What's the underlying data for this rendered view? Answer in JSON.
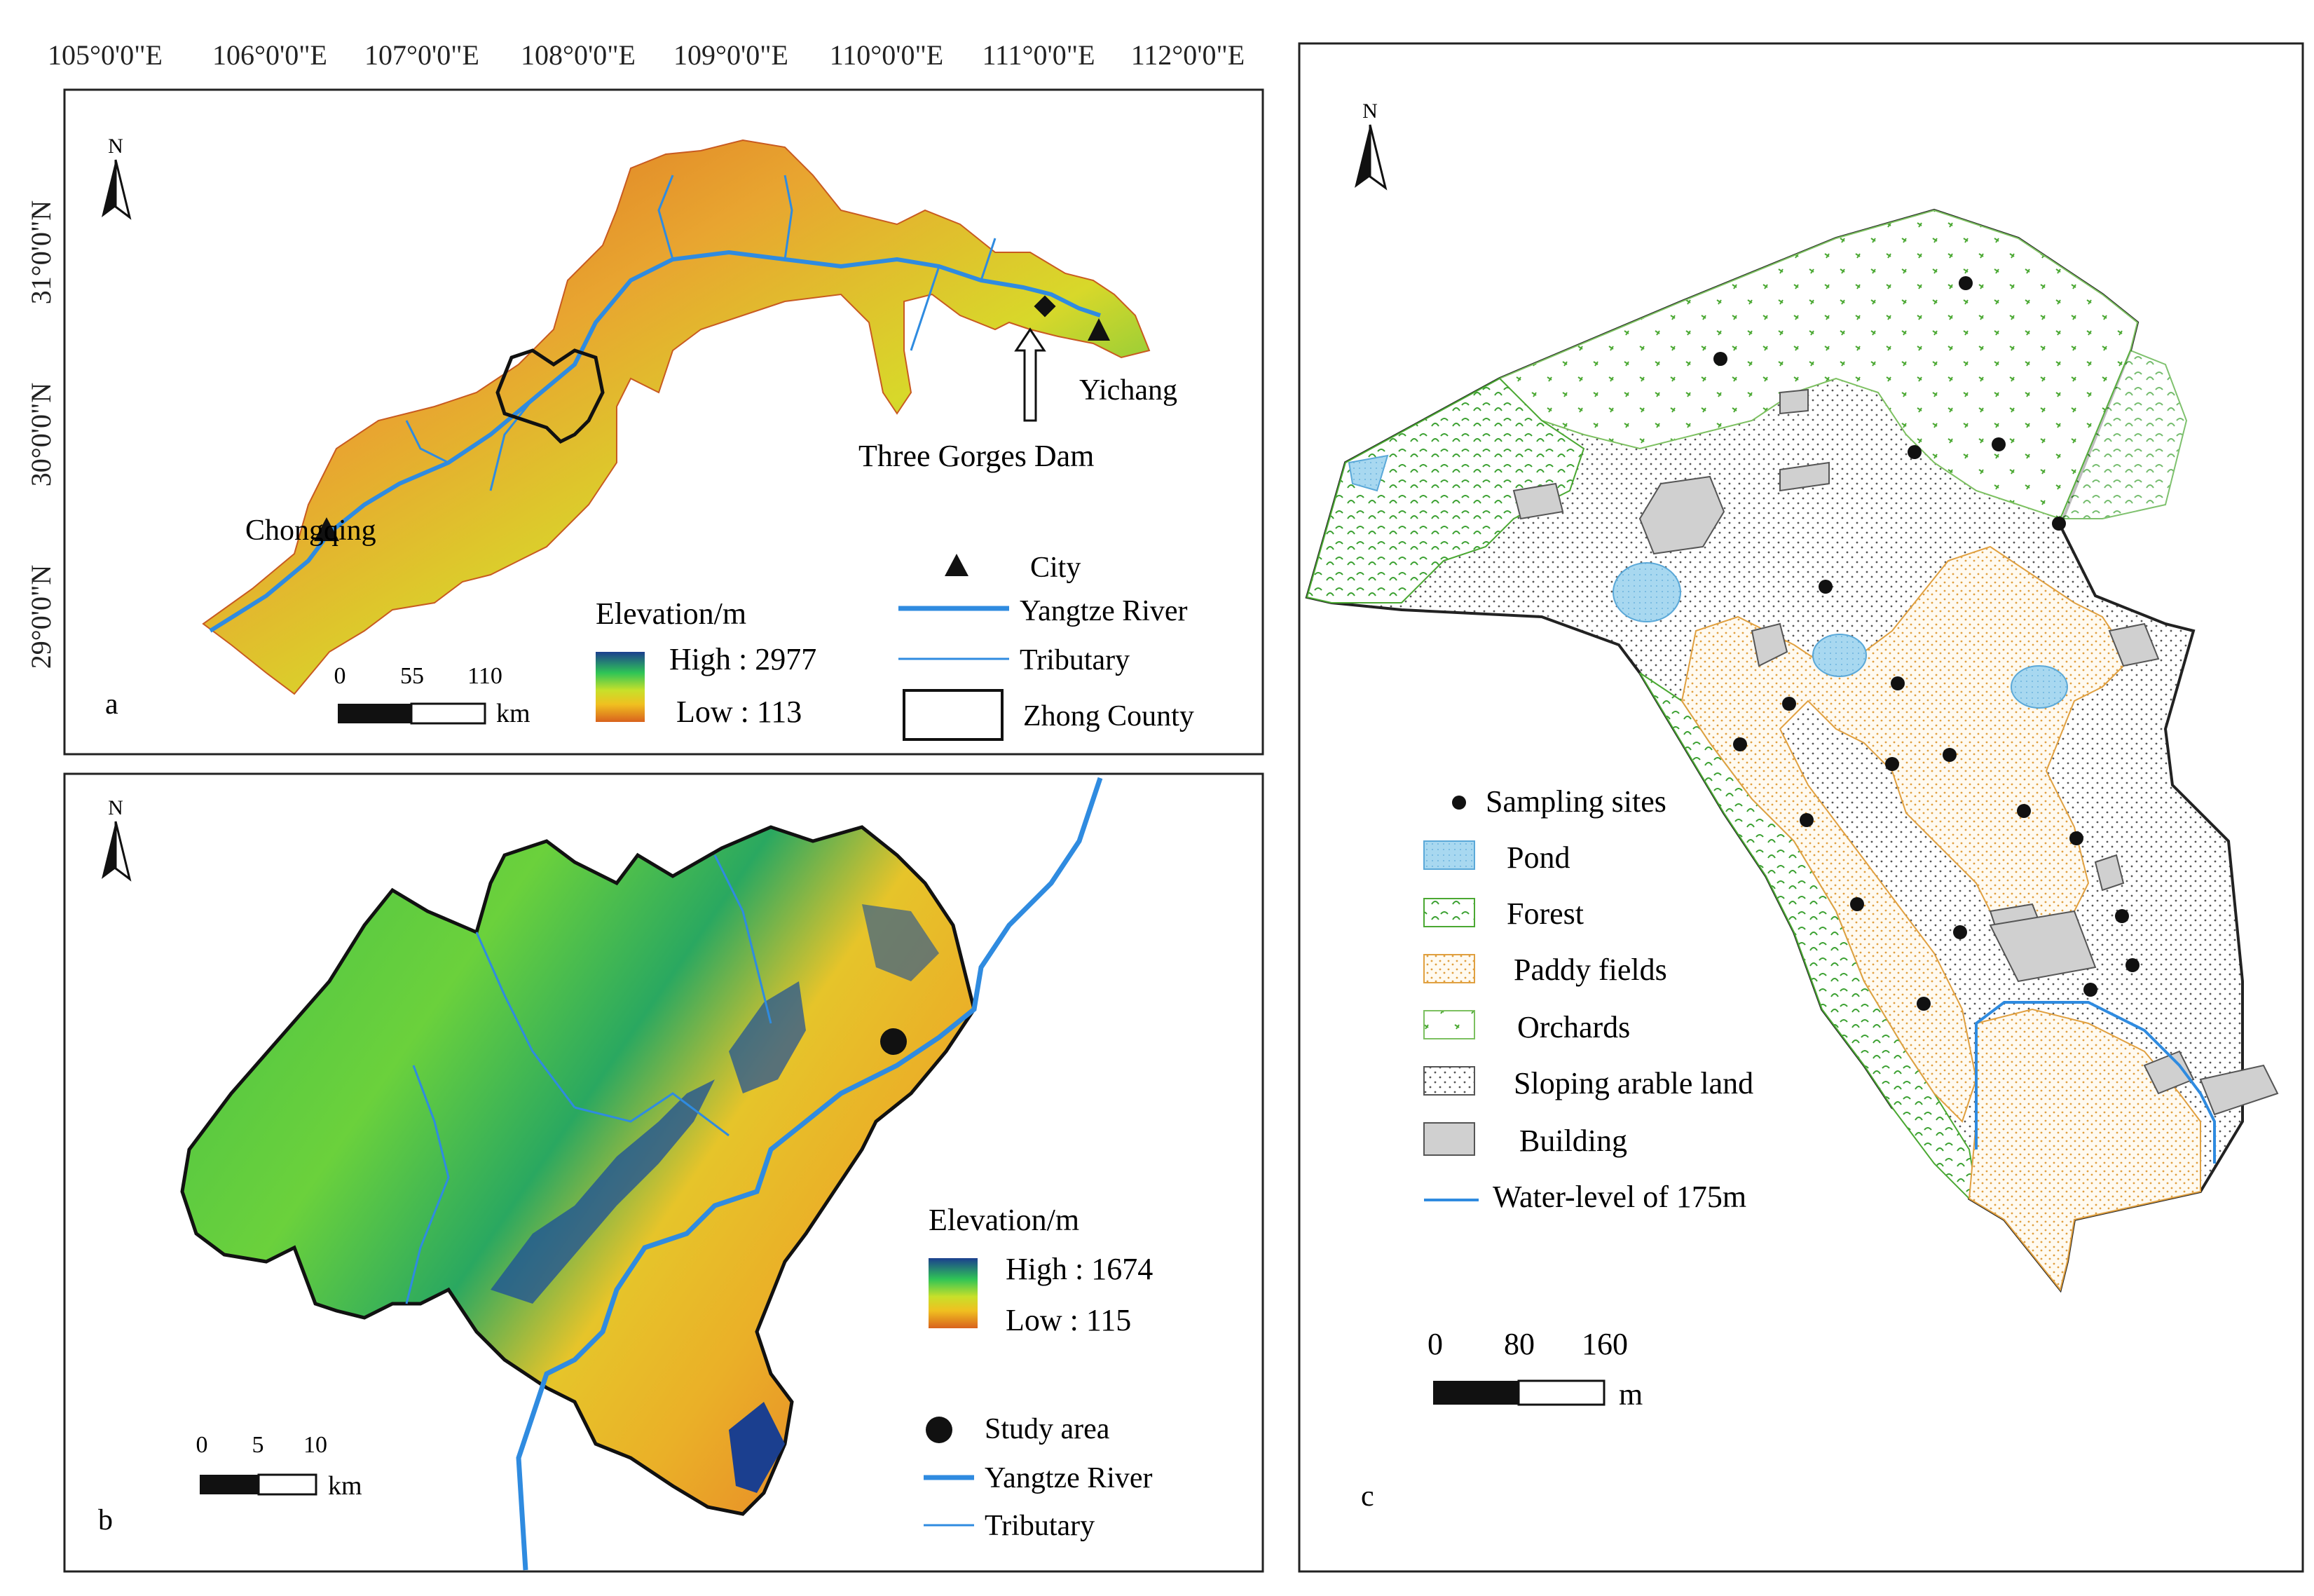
{
  "panel_a": {
    "letter": "a",
    "lon_labels": [
      "105°0'0\"E",
      "106°0'0\"E",
      "107°0'0\"E",
      "108°0'0\"E",
      "109°0'0\"E",
      "110°0'0\"E",
      "111°0'0\"E",
      "112°0'0\"E"
    ],
    "lat_labels": [
      "31°0'0\"N",
      "30°0'0\"N",
      "29°0'0\"N"
    ],
    "north": "N",
    "places": {
      "chongqing": "Chongqing",
      "yichang": "Yichang",
      "dam": "Three Gorges Dam"
    },
    "elevation": {
      "title": "Elevation/m",
      "high": "High : 2977",
      "low": "Low : 113"
    },
    "scale": {
      "labels": [
        "0",
        "55",
        "110"
      ],
      "unit": "km"
    },
    "legend": {
      "city": "City",
      "river": "Yangtze River",
      "tributary": "Tributary",
      "county": "Zhong County"
    }
  },
  "panel_b": {
    "letter": "b",
    "north": "N",
    "elevation": {
      "title": "Elevation/m",
      "high": "High : 1674",
      "low": "Low : 115"
    },
    "scale": {
      "labels": [
        "0",
        "5",
        "10"
      ],
      "unit": "km"
    },
    "legend": {
      "study": "Study area",
      "river": "Yangtze River",
      "tributary": "Tributary"
    }
  },
  "panel_c": {
    "letter": "c",
    "north": "N",
    "legend": {
      "sampling": "Sampling sites",
      "pond": "Pond",
      "forest": "Forest",
      "paddy": "Paddy fields",
      "orchards": "Orchards",
      "sloping": "Sloping arable land",
      "building": "Building",
      "water": "Water-level of 175m"
    },
    "scale": {
      "labels": [
        "0",
        "80",
        "160"
      ],
      "unit": "m"
    }
  },
  "colors": {
    "high": "#1b3f8f",
    "mid": "#2fc456",
    "yellow": "#e6d52a",
    "low": "#d9621d",
    "river": "#2f8be0",
    "pond": "#a8d8f0",
    "forest": "#4aa832",
    "paddy": "#e8b45a",
    "building": "#d0d0d0"
  }
}
